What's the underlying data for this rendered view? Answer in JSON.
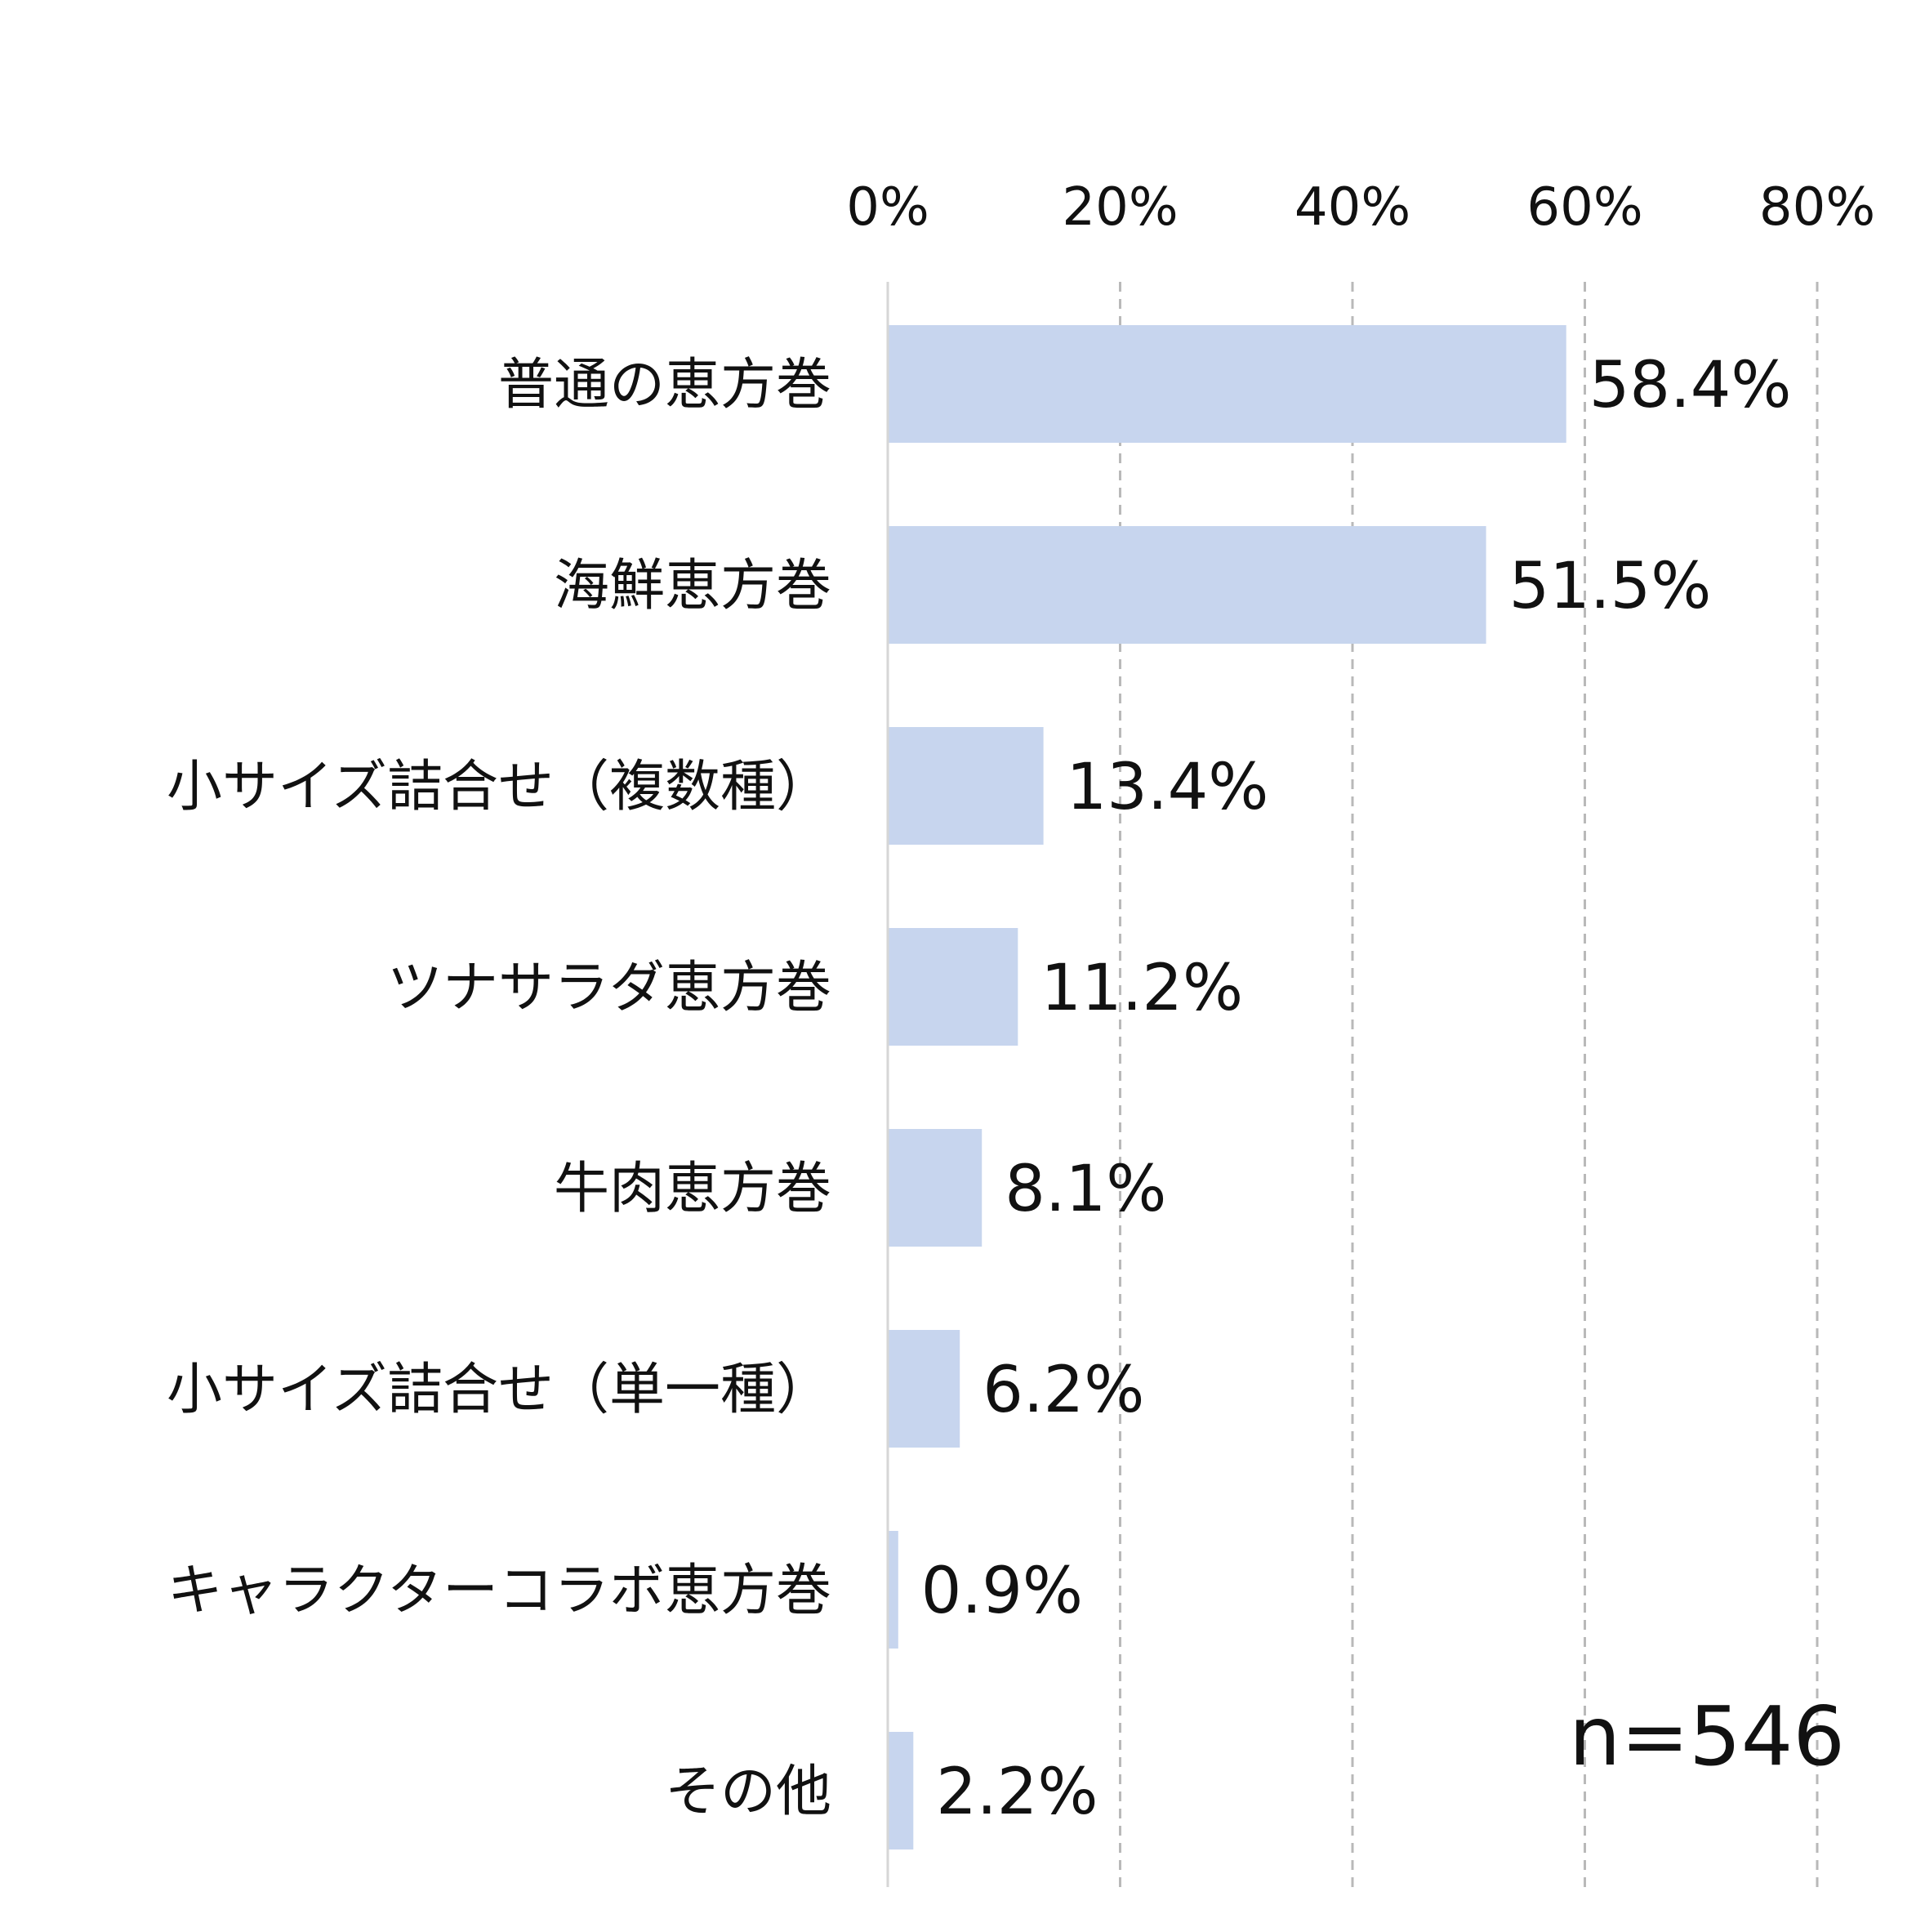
{
  "chart_data": {
    "type": "bar",
    "orientation": "horizontal",
    "categories": [
      "普通の恵方巻",
      "海鮮恵方巻",
      "小サイズ詰合せ（複数種）",
      "ツナサラダ恵方巻",
      "牛肉恵方巻",
      "小サイズ詰合せ（単一種）",
      "キャラクターコラボ恵方巻",
      "その他"
    ],
    "values": [
      58.4,
      51.5,
      13.4,
      11.2,
      8.1,
      6.2,
      0.9,
      2.2
    ],
    "value_labels": [
      "58.4%",
      "51.5%",
      "13.4%",
      "11.2%",
      "8.1%",
      "6.2%",
      "0.9%",
      "2.2%"
    ],
    "x_ticks": [
      "0%",
      "20%",
      "40%",
      "60%",
      "80%"
    ],
    "xlim": [
      0,
      80
    ],
    "x_axis_position": "top",
    "grid": "dashed vertical",
    "bar_color": "#c7d5ee",
    "annotation": "n=546"
  }
}
